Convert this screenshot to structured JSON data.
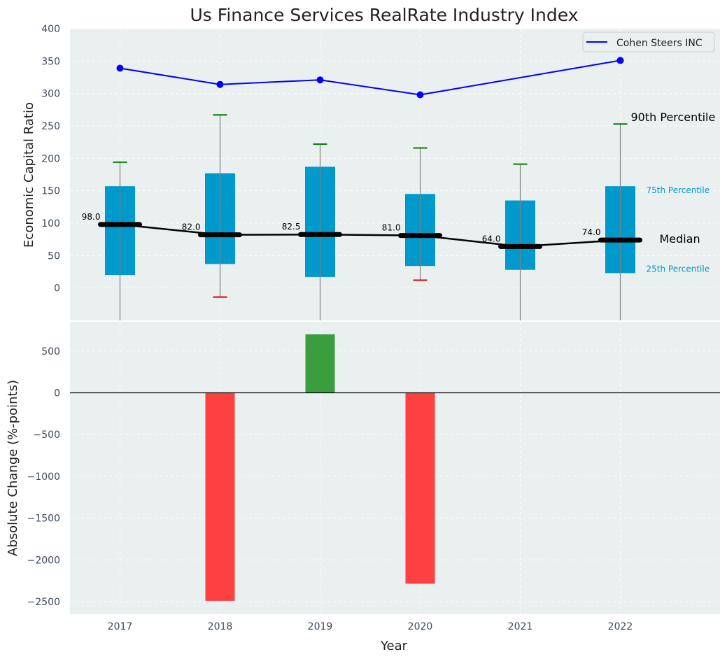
{
  "chart_data": [
    {
      "type": "box",
      "title": "Us Finance Services RealRate Industry Index",
      "ylabel": "Economic Capital Ratio",
      "ylim": [
        -50,
        400
      ],
      "yticks": [
        0,
        50,
        100,
        150,
        200,
        250,
        300,
        350,
        400
      ],
      "categories": [
        "2017",
        "2018",
        "2019",
        "2020",
        "2021",
        "2022"
      ],
      "boxes": [
        {
          "year": "2017",
          "whisker_low": -50,
          "q1": 20,
          "median": 98.0,
          "q3": 157,
          "p90": 194,
          "low_cap": null,
          "median_label": "98.0"
        },
        {
          "year": "2018",
          "whisker_low": -14,
          "q1": 37,
          "median": 82.0,
          "q3": 177,
          "p90": 267,
          "low_cap": -14,
          "median_label": "82.0"
        },
        {
          "year": "2019",
          "whisker_low": -50,
          "q1": 17,
          "median": 82.5,
          "q3": 187,
          "p90": 222,
          "low_cap": null,
          "median_label": "82.5"
        },
        {
          "year": "2020",
          "whisker_low": 12,
          "q1": 34,
          "median": 81.0,
          "q3": 145,
          "p90": 216,
          "low_cap": 12,
          "median_label": "81.0"
        },
        {
          "year": "2021",
          "whisker_low": -50,
          "q1": 28,
          "median": 64.0,
          "q3": 135,
          "p90": 191,
          "low_cap": null,
          "median_label": "64.0"
        },
        {
          "year": "2022",
          "whisker_low": -50,
          "q1": 23,
          "median": 74.0,
          "q3": 157,
          "p90": 253,
          "low_cap": null,
          "median_label": "74.0"
        }
      ],
      "series": [
        {
          "name": "Cohen Steers INC",
          "type": "line",
          "x": [
            "2017",
            "2018",
            "2019",
            "2020",
            "2022"
          ],
          "values": [
            339,
            314,
            321,
            298,
            351
          ],
          "color": "#0000ff"
        }
      ],
      "annotations": {
        "p90_label": "90th Percentile",
        "p75_label": "75th Percentile",
        "median_label": "Median",
        "p25_label": "25th Percentile"
      },
      "legend": "top-right",
      "colors": {
        "box": "#0099cc",
        "median": "#000000",
        "high_cap": "#008000",
        "low_cap": "#e00000",
        "whisker": "#808080"
      }
    },
    {
      "type": "bar",
      "xlabel": "Year",
      "ylabel": "Absolute Change (%-points)",
      "ylim": [
        -2650,
        850
      ],
      "yticks": [
        -2500,
        -2000,
        -1500,
        -1000,
        -500,
        0,
        500
      ],
      "ytick_labels": [
        "−2500",
        "−2000",
        "−1500",
        "−1000",
        "−500",
        "0",
        "500"
      ],
      "categories": [
        "2017",
        "2018",
        "2019",
        "2020",
        "2021",
        "2022"
      ],
      "values": [
        0,
        -2490,
        700,
        -2285,
        0,
        0
      ],
      "colors": {
        "positive": "#3a9e3e",
        "negative": "#ff4040"
      }
    }
  ]
}
